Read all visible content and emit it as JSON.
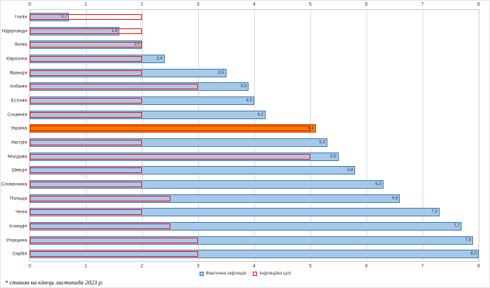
{
  "chart_data": {
    "type": "bar",
    "orientation": "horizontal",
    "categories": [
      "Італія",
      "Нідерланди",
      "Литва",
      "Єврозона",
      "Франція",
      "Албанія",
      "Естонія",
      "Словенія",
      "Україна",
      "Австрія",
      "Молдова",
      "Швеція",
      "Словаччина",
      "Польща",
      "Чехія",
      "Ісландія",
      "Угорщина",
      "Сербія"
    ],
    "series": [
      {
        "name": "Фактична інфляція",
        "values": [
          0.7,
          1.6,
          2.0,
          2.4,
          3.5,
          3.9,
          4.0,
          4.2,
          5.1,
          5.3,
          5.5,
          5.8,
          6.3,
          6.6,
          7.3,
          7.7,
          7.9,
          8.0
        ]
      },
      {
        "name": "Інфляційні цілі",
        "values": [
          2,
          2,
          2,
          2,
          2,
          3,
          2,
          2,
          5,
          2,
          5,
          2,
          2,
          2.5,
          2,
          2.5,
          3,
          3
        ]
      }
    ],
    "value_labels": [
      "0,7",
      "1,6",
      "2,0",
      "2,4",
      "3,5",
      "3,9",
      "4,0",
      "4,2",
      "5,1",
      "5,3",
      "5,5",
      "5,8",
      "6,3",
      "6,6",
      "7,3",
      "7,7",
      "7,9",
      "8,0"
    ],
    "highlight_category": "Україна",
    "xlim": [
      0,
      8
    ],
    "ticks": [
      0,
      1,
      2,
      3,
      4,
      5,
      6,
      7,
      8
    ],
    "grid": true,
    "legend_position": "bottom",
    "colors": {
      "bar_fill": "#a6c9e8",
      "bar_border": "#3a76b8",
      "highlight_fill": "#f57c00",
      "highlight_border": "#be5504",
      "target_outline": "#ff0000"
    },
    "legend": [
      {
        "label": "Фактична інфляція",
        "type": "filled"
      },
      {
        "label": "Інфляційні цілі",
        "type": "outline"
      }
    ],
    "footnote": "* станом на кінець листопада 2023 р."
  }
}
